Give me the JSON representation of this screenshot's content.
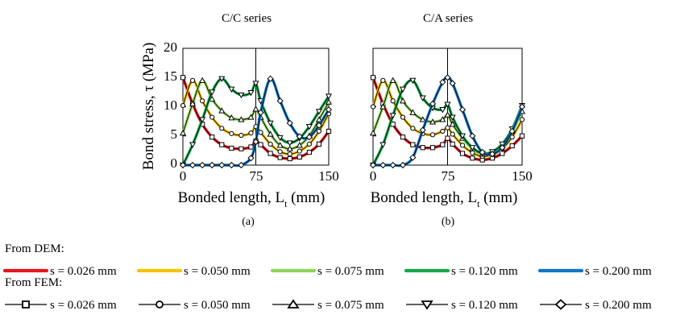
{
  "figure": {
    "panel_titles": [
      "C/C series",
      "C/A series"
    ],
    "panel_labels": [
      "(a)",
      "(b)"
    ],
    "ylabel": "Bond stress, τ (MPa)",
    "xlabel": "Bonded length, L",
    "xlabel_sub": "t",
    "xlabel_unit": " (mm)",
    "legend": {
      "dem_heading": "From DEM:",
      "fem_heading": "From FEM:",
      "entries": [
        "s = 0.026 mm",
        "s = 0.050 mm",
        "s = 0.075 mm",
        "s = 0.120 mm",
        "s = 0.200 mm"
      ],
      "colors": [
        "#e8141c",
        "#f7c200",
        "#8cd45a",
        "#16a84a",
        "#1276c6"
      ],
      "markers": [
        "square",
        "circle",
        "triangle-up",
        "triangle-down",
        "diamond"
      ]
    }
  },
  "chart_data": [
    {
      "type": "line",
      "title": "C/C series",
      "xlabel": "Bonded length, Lt (mm)",
      "ylabel": "Bond stress, τ (MPa)",
      "xlim": [
        0,
        150
      ],
      "ylim": [
        0,
        20
      ],
      "xticks": [
        0,
        75,
        150
      ],
      "yticks": [
        0,
        5,
        10,
        15,
        20
      ],
      "x": [
        0,
        10,
        20,
        30,
        40,
        50,
        60,
        70,
        75,
        80,
        90,
        100,
        110,
        120,
        130,
        140,
        150
      ],
      "series": [
        {
          "name": "s = 0.026 mm",
          "values": [
            15,
            10.5,
            7,
            4.8,
            3.5,
            2.9,
            2.8,
            3.1,
            4.1,
            3.5,
            2.0,
            1.3,
            1.1,
            1.4,
            2.2,
            3.6,
            5.8
          ]
        },
        {
          "name": "s = 0.050 mm",
          "values": [
            10.2,
            14.5,
            11.0,
            8.2,
            6.3,
            5.4,
            5.1,
            5.5,
            6.6,
            5.6,
            3.6,
            2.3,
            1.9,
            2.4,
            3.6,
            5.8,
            8.8
          ]
        },
        {
          "name": "s = 0.075 mm",
          "values": [
            5.5,
            10.5,
            14.5,
            11.3,
            9.3,
            8.1,
            7.8,
            8.2,
            9.6,
            8.2,
            5.3,
            3.4,
            2.8,
            3.4,
            5.0,
            7.8,
            10.8
          ]
        },
        {
          "name": "s = 0.120 mm",
          "values": [
            0,
            3.5,
            7.8,
            12.5,
            14.8,
            13.0,
            12.0,
            12.4,
            14.0,
            11.0,
            7.2,
            4.7,
            3.8,
            4.6,
            6.6,
            9.2,
            11.8
          ]
        },
        {
          "name": "s = 0.200 mm",
          "values": [
            0,
            0,
            0,
            0,
            0,
            0,
            0,
            1.2,
            4.0,
            9.0,
            14.8,
            11.0,
            7.2,
            4.9,
            4.8,
            6.8,
            9.5
          ]
        }
      ]
    },
    {
      "type": "line",
      "title": "C/A series",
      "xlabel": "Bonded length, Lt (mm)",
      "ylabel": "Bond stress, τ (MPa)",
      "xlim": [
        0,
        150
      ],
      "ylim": [
        0,
        20
      ],
      "xticks": [
        0,
        75,
        150
      ],
      "yticks": [
        0,
        5,
        10,
        15,
        20
      ],
      "x": [
        0,
        10,
        20,
        30,
        40,
        50,
        60,
        70,
        75,
        80,
        90,
        100,
        110,
        120,
        130,
        140,
        150
      ],
      "series": [
        {
          "name": "s = 0.026 mm",
          "values": [
            15,
            10.5,
            7.0,
            4.8,
            3.5,
            3.0,
            3.0,
            3.5,
            4.6,
            3.6,
            2.0,
            1.2,
            0.9,
            1.2,
            2.0,
            3.3,
            5.0
          ]
        },
        {
          "name": "s = 0.050 mm",
          "values": [
            10.0,
            14.5,
            11.0,
            8.2,
            6.3,
            5.4,
            5.2,
            5.8,
            6.4,
            5.3,
            3.4,
            2.1,
            1.5,
            1.8,
            2.8,
            4.8,
            7.8
          ]
        },
        {
          "name": "s = 0.075 mm",
          "values": [
            5.5,
            10.0,
            14.5,
            11.0,
            9.0,
            7.8,
            7.4,
            7.8,
            8.6,
            7.0,
            4.6,
            2.8,
            1.9,
            2.1,
            3.3,
            5.8,
            9.2
          ]
        },
        {
          "name": "s = 0.120 mm",
          "values": [
            0,
            3.5,
            8.5,
            13.0,
            14.5,
            11.5,
            9.8,
            9.5,
            10.4,
            8.2,
            5.0,
            3.0,
            2.0,
            2.3,
            3.6,
            6.2,
            10.2
          ]
        },
        {
          "name": "s = 0.200 mm",
          "values": [
            0,
            0,
            0,
            0,
            1.3,
            6.0,
            10.5,
            14.2,
            15.0,
            14.0,
            9.5,
            5.0,
            2.2,
            1.9,
            3.0,
            5.8,
            10.0
          ]
        }
      ]
    }
  ]
}
